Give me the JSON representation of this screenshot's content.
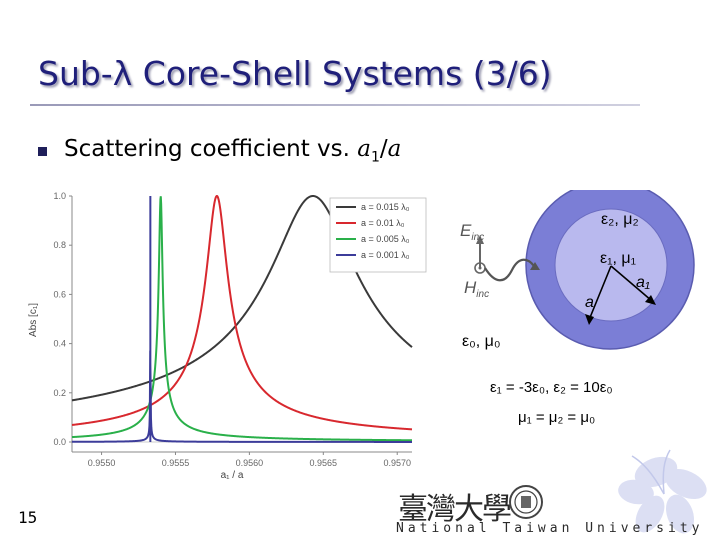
{
  "title": "Sub-λ Core-Shell Systems (3/6)",
  "bullet": {
    "text": "Scattering coefficient vs. ",
    "a1": "a",
    "a1_sub": "1",
    "slash": "/",
    "a": "a"
  },
  "page_number": "15",
  "footer": {
    "university": "National Taiwan University",
    "calligraphy": "臺灣大學"
  },
  "diagram": {
    "outer_label": "ε₂, μ₂",
    "inner_label": "ε₁, μ₁",
    "a1_label": "a₁",
    "a_label": "a",
    "E_label": "E",
    "E_sub": "inc",
    "H_label": "H",
    "H_sub": "inc",
    "background_label": "ε₀, μ₀",
    "eq1": "ε₁ = -3ε₀, ε₂ = 10ε₀",
    "eq2": "μ₁ = μ₂ = μ₀",
    "outer_color": "#7b7ed6",
    "inner_color": "#b9b9ee"
  },
  "chart_data": {
    "type": "line",
    "title": "",
    "xlabel": "a₁ / a",
    "ylabel": "Abs [c₁]",
    "xlim": [
      0.9548,
      0.9571
    ],
    "ylim": [
      0,
      1.0
    ],
    "xticks": [
      "0.9550",
      "0.9555",
      "0.9560",
      "0.9565",
      "0.9570"
    ],
    "xtick_values": [
      0.955,
      0.9555,
      0.956,
      0.9565,
      0.957
    ],
    "yticks": [
      "0.0",
      "0.2",
      "0.4",
      "0.6",
      "0.8",
      "1.0"
    ],
    "ytick_values": [
      0.0,
      0.2,
      0.4,
      0.6,
      0.8,
      1.0
    ],
    "legend_position": "top-right",
    "series": [
      {
        "name": "a = 0.015 λ₀",
        "color": "#3a3a3a",
        "center": 0.95643,
        "width": 0.00028
      },
      {
        "name": "a = 0.01 λ₀",
        "color": "#d8282e",
        "center": 0.95578,
        "width": 6.8e-05
      },
      {
        "name": "a = 0.005 λ₀",
        "color": "#2ab04a",
        "center": 0.9554,
        "width": 1.2e-05
      },
      {
        "name": "a = 0.001 λ₀",
        "color": "#3c3c9a",
        "center": 0.95533,
        "width": 4e-07
      }
    ]
  }
}
